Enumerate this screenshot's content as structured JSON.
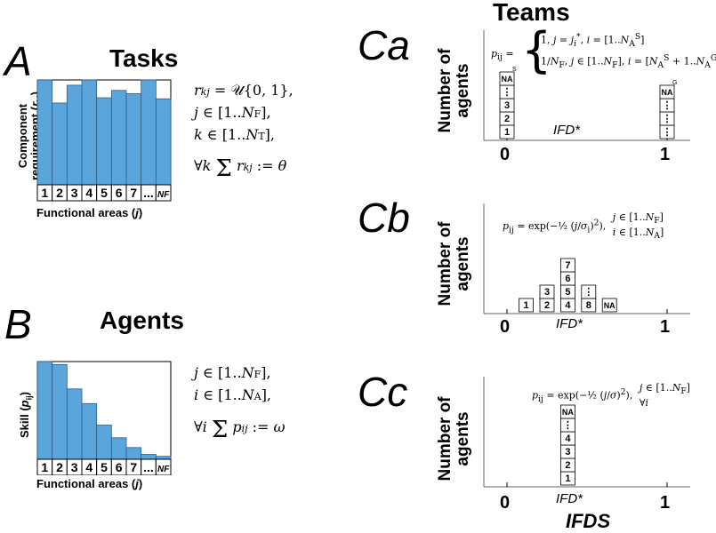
{
  "panelA": {
    "label": "A",
    "title": "Tasks",
    "ylabel": "Component requirement (rₖⱼ)",
    "ylabel_lines": [
      "Component",
      "requirement (r",
      "kj",
      ")"
    ],
    "xlabel": "Functional areas (j)",
    "cats": [
      "1",
      "2",
      "3",
      "4",
      "5",
      "6",
      "7",
      "...",
      "N_F"
    ],
    "values": [
      1.0,
      0.78,
      0.95,
      1.0,
      0.83,
      0.9,
      0.87,
      1.0,
      0.82
    ],
    "eq": [
      "r_kj = U{0,1},",
      "j ∈ [1..N_F],",
      "k ∈ [1..N_T],",
      "∀k Σ r_kj := θ"
    ]
  },
  "panelB": {
    "label": "B",
    "title": "Agents",
    "ylabel": "Skill (p_ij)",
    "xlabel": "Functional areas (j)",
    "cats": [
      "1",
      "2",
      "3",
      "4",
      "5",
      "6",
      "7",
      "...",
      "N_F"
    ],
    "values": [
      1.0,
      0.97,
      0.72,
      0.57,
      0.35,
      0.22,
      0.12,
      0.05,
      0.03
    ],
    "eq": [
      "j ∈ [1..N_F],",
      "i ∈ [1..N_A],",
      "∀i Σ p_ij := ω"
    ]
  },
  "panelC": {
    "title": "Teams",
    "ylabel": "Number of agents",
    "xlabel": "IFDS",
    "ifd": "IFD*",
    "ticks": [
      "0",
      "1"
    ],
    "sub": [
      {
        "label": "Ca",
        "formula": "p_ij = { 1, j = j_i*, i = [1..N_A^S] ; 1/N_F, j ∈ [1..N_F], i = [N_A^S + 1..N_A^G] }",
        "stacks": [
          {
            "pos": 0,
            "cells": [
              "1",
              "2",
              "3",
              "⋮",
              "N_A^S"
            ]
          },
          {
            "pos": 1,
            "cells": [
              "⋮",
              "⋮",
              "⋮",
              "N_A^G"
            ]
          }
        ]
      },
      {
        "label": "Cb",
        "formula": "p_ij = exp(-1/2 (j/σ_i)^2), j ∈ [1..N_F], i ∈ [1..N_A]",
        "stacks": [
          {
            "pos": 0.12,
            "cells": [
              "1"
            ]
          },
          {
            "pos": 0.25,
            "cells": [
              "2",
              "3"
            ]
          },
          {
            "pos": 0.38,
            "cells": [
              "4",
              "5",
              "6",
              "7"
            ]
          },
          {
            "pos": 0.51,
            "cells": [
              "8",
              "⋮"
            ]
          },
          {
            "pos": 0.64,
            "cells": [
              "N_A"
            ]
          }
        ]
      },
      {
        "label": "Cc",
        "formula": "p_ij = exp(-1/2 (j/σ)^2), j ∈ [1..N_F], ∀i",
        "stacks": [
          {
            "pos": 0.38,
            "cells": [
              "1",
              "2",
              "3",
              "4",
              "⋮",
              "N_A"
            ]
          }
        ]
      }
    ]
  }
}
